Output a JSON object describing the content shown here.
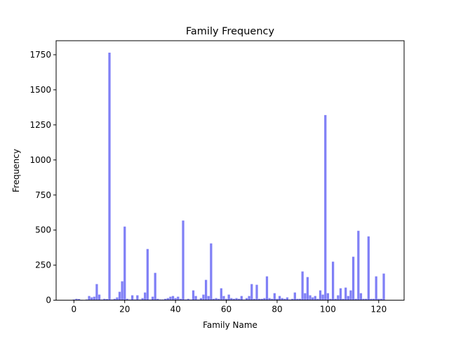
{
  "chart_data": {
    "type": "bar",
    "title": "Family Frequency",
    "xlabel": "Family Name",
    "ylabel": "Frequency",
    "xlim": [
      -7,
      130
    ],
    "ylim": [
      0,
      1850
    ],
    "xticks": [
      0,
      20,
      40,
      60,
      80,
      100,
      120
    ],
    "yticks": [
      0,
      250,
      500,
      750,
      1000,
      1250,
      1500,
      1750
    ],
    "grid": false,
    "bar_color": "#8080f6",
    "x": [
      0,
      1,
      2,
      3,
      4,
      5,
      6,
      7,
      8,
      9,
      10,
      11,
      12,
      13,
      14,
      15,
      16,
      17,
      18,
      19,
      20,
      21,
      22,
      23,
      24,
      25,
      26,
      27,
      28,
      29,
      30,
      31,
      32,
      33,
      34,
      35,
      36,
      37,
      38,
      39,
      40,
      41,
      42,
      43,
      44,
      45,
      46,
      47,
      48,
      49,
      50,
      51,
      52,
      53,
      54,
      55,
      56,
      57,
      58,
      59,
      60,
      61,
      62,
      63,
      64,
      65,
      66,
      67,
      68,
      69,
      70,
      71,
      72,
      73,
      74,
      75,
      76,
      77,
      78,
      79,
      80,
      81,
      82,
      83,
      84,
      85,
      86,
      87,
      88,
      89,
      90,
      91,
      92,
      93,
      94,
      95,
      96,
      97,
      98,
      99,
      100,
      101,
      102,
      103,
      104,
      105,
      106,
      107,
      108,
      109,
      110,
      111,
      112,
      113,
      114,
      115,
      116,
      117,
      118,
      119,
      120,
      121,
      122
    ],
    "values": [
      5,
      10,
      8,
      3,
      0,
      5,
      30,
      20,
      25,
      115,
      40,
      5,
      10,
      8,
      1765,
      5,
      10,
      20,
      60,
      135,
      525,
      10,
      5,
      35,
      5,
      35,
      5,
      15,
      55,
      365,
      5,
      25,
      195,
      10,
      5,
      5,
      10,
      15,
      25,
      30,
      15,
      25,
      10,
      568,
      5,
      10,
      5,
      70,
      30,
      5,
      15,
      40,
      145,
      30,
      405,
      10,
      15,
      10,
      85,
      30,
      10,
      40,
      15,
      10,
      15,
      10,
      30,
      5,
      15,
      30,
      115,
      10,
      110,
      10,
      10,
      15,
      170,
      15,
      10,
      50,
      10,
      30,
      15,
      10,
      20,
      5,
      10,
      55,
      10,
      10,
      205,
      50,
      165,
      35,
      20,
      30,
      10,
      70,
      40,
      1320,
      50,
      10,
      275,
      10,
      35,
      85,
      10,
      90,
      30,
      70,
      310,
      10,
      495,
      50,
      10,
      10,
      455,
      10,
      10,
      170,
      10,
      10,
      190
    ]
  }
}
